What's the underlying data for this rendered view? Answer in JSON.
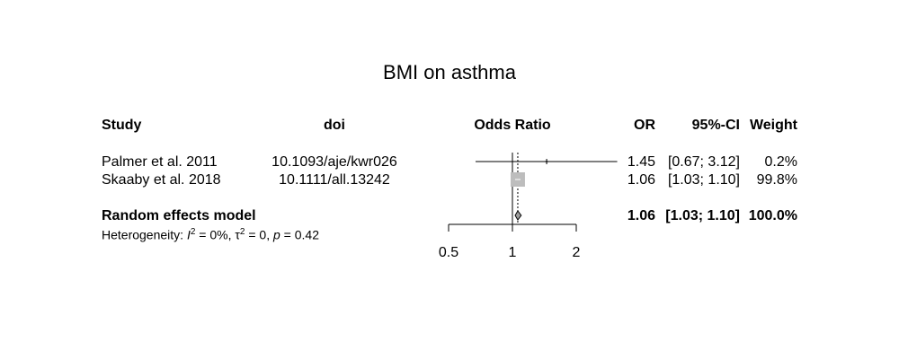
{
  "chart_data": {
    "type": "forest",
    "title": "BMI on asthma",
    "columns": {
      "study": "Study",
      "doi": "doi",
      "plot": "Odds Ratio",
      "or": "OR",
      "ci": "95%-CI",
      "weight": "Weight"
    },
    "studies": [
      {
        "study": "Palmer et al. 2011",
        "doi": "10.1093/aje/kwr026",
        "or": 1.45,
        "ci_low": 0.67,
        "ci_high": 3.12,
        "or_text": "1.45",
        "ci_text": "[0.67; 3.12]",
        "weight_text": "0.2%",
        "weight": 0.2
      },
      {
        "study": "Skaaby et al. 2018",
        "doi": "10.1111/all.13242",
        "or": 1.06,
        "ci_low": 1.03,
        "ci_high": 1.1,
        "or_text": "1.06",
        "ci_text": "[1.03; 1.10]",
        "weight_text": "99.8%",
        "weight": 99.8
      }
    ],
    "pooled": {
      "label": "Random effects model",
      "or": 1.06,
      "ci_low": 1.03,
      "ci_high": 1.1,
      "or_text": "1.06",
      "ci_text": "[1.03; 1.10]",
      "weight_text": "100.0%"
    },
    "heterogeneity": {
      "prefix": "Heterogeneity: ",
      "i2_symbol": "I",
      "i2_value": " = 0%, ",
      "tau_symbol": "τ",
      "tau_value": " = 0, ",
      "p_symbol": "p",
      "p_value": " = 0.42"
    },
    "axis": {
      "scale": "log",
      "xlim": [
        0.5,
        2
      ],
      "ticks": [
        0.5,
        1,
        2
      ],
      "tick_labels": [
        "0.5",
        "1",
        "2"
      ],
      "reference_line": 1
    }
  }
}
